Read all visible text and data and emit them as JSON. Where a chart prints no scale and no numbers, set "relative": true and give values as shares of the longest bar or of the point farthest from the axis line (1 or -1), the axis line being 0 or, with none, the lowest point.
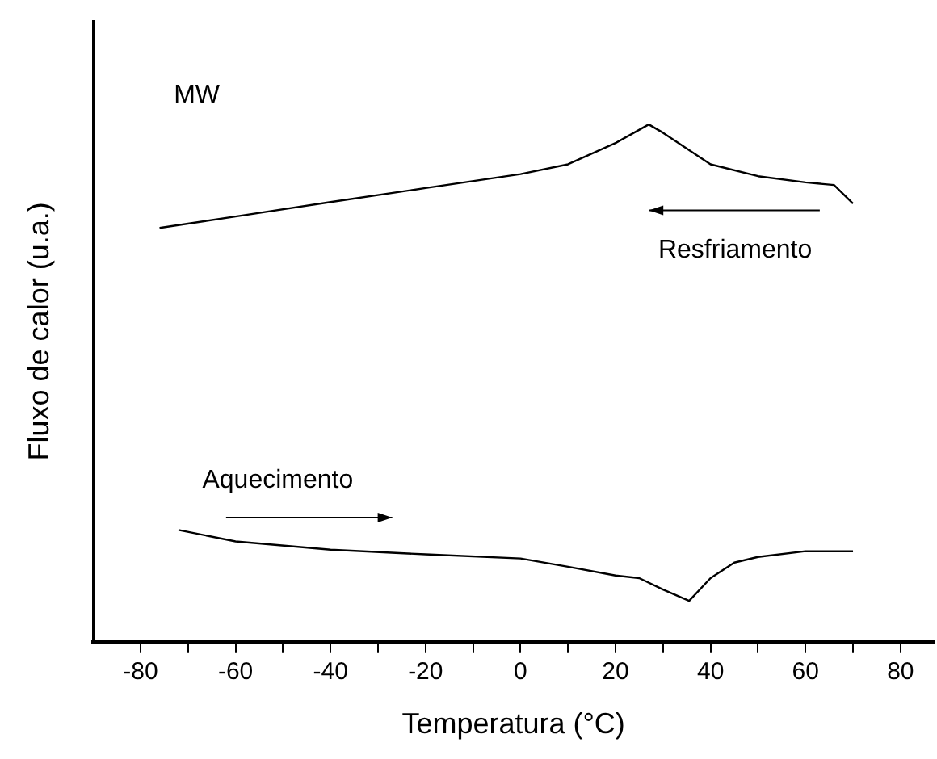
{
  "chart_data": {
    "type": "line",
    "relative": true,
    "xlabel": "Temperatura (°C)",
    "ylabel": "Fluxo de calor (u.a.)",
    "xlim": [
      -90,
      87
    ],
    "xticks": [
      -80,
      {
        "value": -70,
        "label": null
      },
      -60,
      {
        "value": -50,
        "label": null
      },
      -40,
      {
        "value": -30,
        "label": null
      },
      -20,
      {
        "value": -10,
        "label": null
      },
      0,
      {
        "value": 10,
        "label": null
      },
      20,
      {
        "value": 30,
        "label": null
      },
      40,
      {
        "value": 50,
        "label": null
      },
      60,
      {
        "value": 70,
        "label": null
      },
      80
    ],
    "series": [
      {
        "color": "#000000",
        "x": [
          -76,
          -60,
          -40,
          -20,
          0,
          10,
          20,
          27,
          30,
          40,
          50,
          60,
          66,
          70
        ],
        "values": [
          0.8,
          0.822,
          0.85,
          0.877,
          0.904,
          0.923,
          0.964,
          1,
          0.984,
          0.923,
          0.9,
          0.888,
          0.883,
          0.847
        ]
      },
      {
        "color": "#000000",
        "x": [
          -72,
          -60,
          -40,
          -20,
          0,
          10,
          20,
          25,
          30,
          35.5,
          40,
          45,
          50,
          60,
          70
        ],
        "values": [
          0.216,
          0.194,
          0.178,
          0.169,
          0.161,
          0.145,
          0.128,
          0.123,
          0.101,
          0.079,
          0.123,
          0.153,
          0.164,
          0.175,
          0.175
        ]
      }
    ],
    "annotations": [
      "MW",
      "Resfriamento",
      "Aquecimento"
    ],
    "grid": false,
    "legend": false,
    "marker": "none",
    "line_style": "solid"
  }
}
